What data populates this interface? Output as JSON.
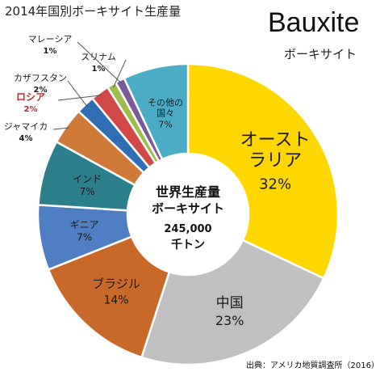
{
  "title": "2014年国別ボーキサイト生産量",
  "title_en": "Bauxite",
  "title_ja": "ボーキサイト",
  "source": "出典：アメリカ地質調査所（2016）",
  "center": {
    "line1": "世界生産量",
    "line2": "ボーキサイト",
    "value": "245,000",
    "unit": "千トン"
  },
  "colors": {
    "australia": "#ffd700",
    "china": "#c0c0c0",
    "brazil": "#c8692a",
    "guinea": "#4f7ec3",
    "india": "#2e7f8c",
    "jamaica": "#d07a3a",
    "kazakhstan": "#2f6eb5",
    "russia": "#d04848",
    "suriname": "#9fbd4a",
    "malaysia": "#7a5a9c",
    "others": "#4bacc6",
    "russia_text": "#c0262b"
  },
  "chart_data": {
    "type": "pie",
    "title": "2014年国別ボーキサイト生産量",
    "slices": [
      {
        "label": "オーストラリア",
        "value": 32,
        "pct_label": "32%"
      },
      {
        "label": "中国",
        "value": 23,
        "pct_label": "23%"
      },
      {
        "label": "ブラジル",
        "value": 14,
        "pct_label": "14%"
      },
      {
        "label": "ギニア",
        "value": 7,
        "pct_label": "7%"
      },
      {
        "label": "インド",
        "value": 7,
        "pct_label": "7%"
      },
      {
        "label": "ジャマイカ",
        "value": 4,
        "pct_label": "4%"
      },
      {
        "label": "カザフスタン",
        "value": 2,
        "pct_label": "2%"
      },
      {
        "label": "ロシア",
        "value": 2,
        "pct_label": "2%"
      },
      {
        "label": "スリナム",
        "value": 1,
        "pct_label": "1%"
      },
      {
        "label": "マレーシア",
        "value": 1,
        "pct_label": "1%"
      },
      {
        "label": "その他の国々",
        "value": 7,
        "pct_label": "7%"
      }
    ]
  }
}
